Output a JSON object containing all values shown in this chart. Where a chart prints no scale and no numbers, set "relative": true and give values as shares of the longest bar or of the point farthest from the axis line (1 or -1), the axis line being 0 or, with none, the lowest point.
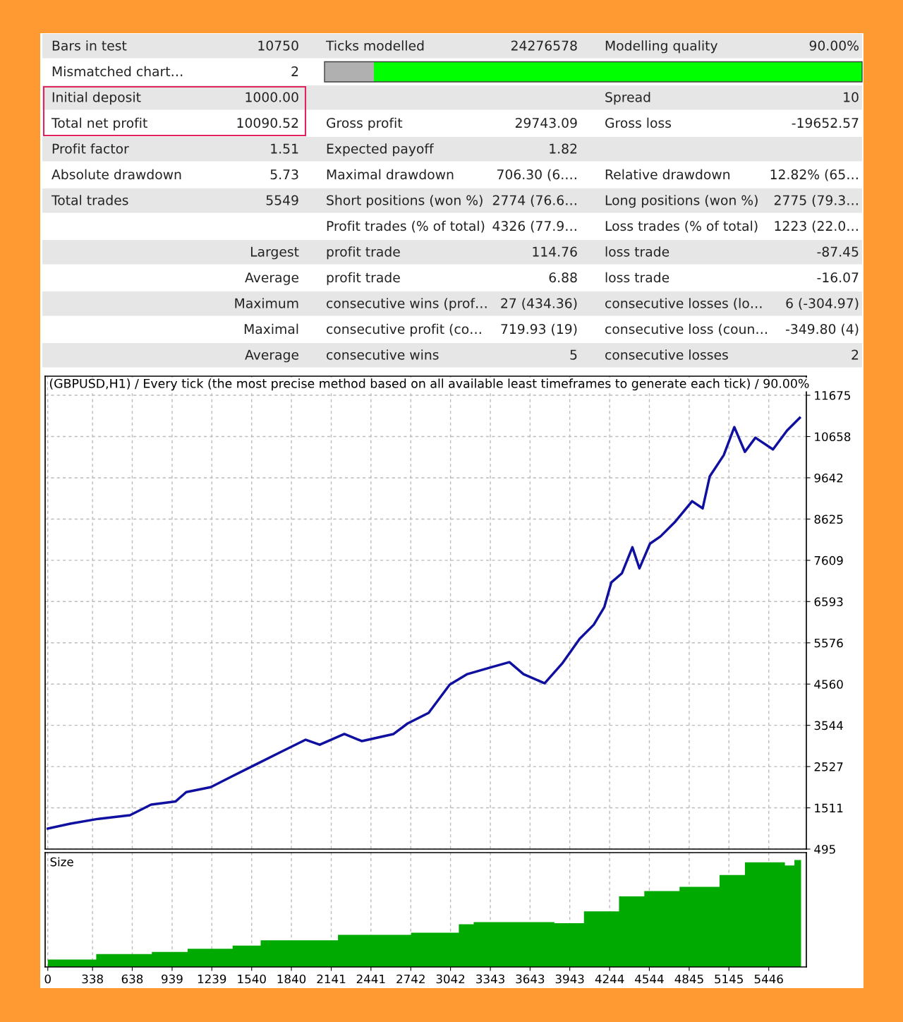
{
  "chart_data": [
    {
      "type": "other",
      "annotations": [
        "Bars in test",
        "10750",
        "Ticks modelled",
        "24276578",
        "Modelling quality",
        "90.00%",
        "Mismatched chart…",
        "2",
        null,
        null,
        null,
        null,
        "Initial deposit",
        "1000.00",
        null,
        null,
        "Spread",
        "10",
        "Total net profit",
        "10090.52",
        "Gross profit",
        "29743.09",
        "Gross loss",
        "-19652.57",
        "Profit factor",
        "1.51",
        "Expected payoff",
        "1.82",
        null,
        null,
        "Absolute drawdown",
        "5.73",
        "Maximal drawdown",
        "706.30 (6.…",
        "Relative drawdown",
        "12.82% (65…",
        "Total trades",
        "5549",
        "Short positions (won %)",
        "2774 (76.6…",
        "Long positions (won %)",
        "2775 (79.3…",
        null,
        null,
        "Profit trades (% of total)",
        "4326 (77.9…",
        "Loss trades (% of total)",
        "1223 (22.0…",
        null,
        "Largest",
        "profit trade",
        "114.76",
        "loss trade",
        "-87.45",
        null,
        "Average",
        "profit trade",
        "6.88",
        "loss trade",
        "-16.07",
        null,
        "Maximum",
        "consecutive wins (prof…",
        "27 (434.36)",
        "consecutive losses (lo…",
        "6 (-304.97)",
        null,
        "Maximal",
        "consecutive profit (co…",
        "719.93 (19)",
        "consecutive loss (coun…",
        "-349.80 (4)",
        null,
        "Average",
        "consecutive wins",
        "5",
        "consecutive losses",
        "2"
      ]
    },
    {
      "type": "line",
      "title": "(GBPUSD,H1) / Every tick (the most precise method based on all available least timeframes to generate each tick) / 90.00%",
      "x": [
        0,
        170,
        382,
        621,
        780,
        966,
        1046,
        1231,
        1391,
        1550,
        1762,
        1948,
        2054,
        2240,
        2373,
        2612,
        2718,
        2877,
        3036,
        3169,
        3354,
        3487,
        3593,
        3753,
        3885,
        4018,
        4124,
        4204,
        4257,
        4337,
        4416,
        4469,
        4549,
        4629,
        4735,
        4867,
        4947,
        5000,
        5106,
        5186,
        5266,
        5345,
        5478,
        5584,
        5680
      ],
      "series": [
        {
          "color": "#1010a0",
          "values": [
            1000,
            1120,
            1240,
            1330,
            1590,
            1670,
            1900,
            2020,
            2285,
            2545,
            2890,
            3190,
            3065,
            3330,
            3155,
            3330,
            3590,
            3850,
            4545,
            4806,
            4980,
            5100,
            4806,
            4580,
            5065,
            5675,
            6022,
            6458,
            7066,
            7290,
            7930,
            7410,
            8020,
            8200,
            8545,
            9065,
            8890,
            9675,
            10200,
            10890,
            10280,
            10630,
            10340,
            10805,
            11120
          ]
        }
      ],
      "xlim": [
        -20,
        5730
      ],
      "ylim": [
        495,
        12145
      ],
      "yticks": [
        495,
        1511,
        2527,
        3544,
        4560,
        5576,
        6593,
        7609,
        8625,
        9642,
        10658,
        11675
      ],
      "xticks": [
        0,
        338,
        638,
        939,
        1239,
        1540,
        1840,
        2141,
        2441,
        2742,
        3042,
        3343,
        3643,
        3943,
        4244,
        4544,
        4845,
        5145,
        5446
      ],
      "tick_labels": "y",
      "grid": true,
      "line_style": "solid"
    },
    {
      "type": "area",
      "relative": true,
      "annotations": [
        "Size"
      ],
      "x": [
        0,
        366,
        786,
        1056,
        1396,
        1608,
        2192,
        2744,
        3105,
        3217,
        3827,
        4050,
        4315,
        4506,
        4772,
        5074,
        5266,
        5568,
        5640,
        5690
      ],
      "series": [
        {
          "color": "#00aa00",
          "values": [
            0.07,
            0.12,
            0.14,
            0.17,
            0.2,
            0.25,
            0.3,
            0.32,
            0.4,
            0.42,
            0.41,
            0.52,
            0.66,
            0.71,
            0.75,
            0.86,
            0.98,
            0.95,
            1,
            1
          ]
        }
      ],
      "xlim": [
        -20,
        5730
      ],
      "xticks": [
        0,
        338,
        638,
        939,
        1239,
        1540,
        1840,
        2141,
        2441,
        2742,
        3042,
        3343,
        3643,
        3943,
        4244,
        4544,
        4845,
        5145,
        5446
      ],
      "tick_labels": "x",
      "grid": "x"
    }
  ]
}
